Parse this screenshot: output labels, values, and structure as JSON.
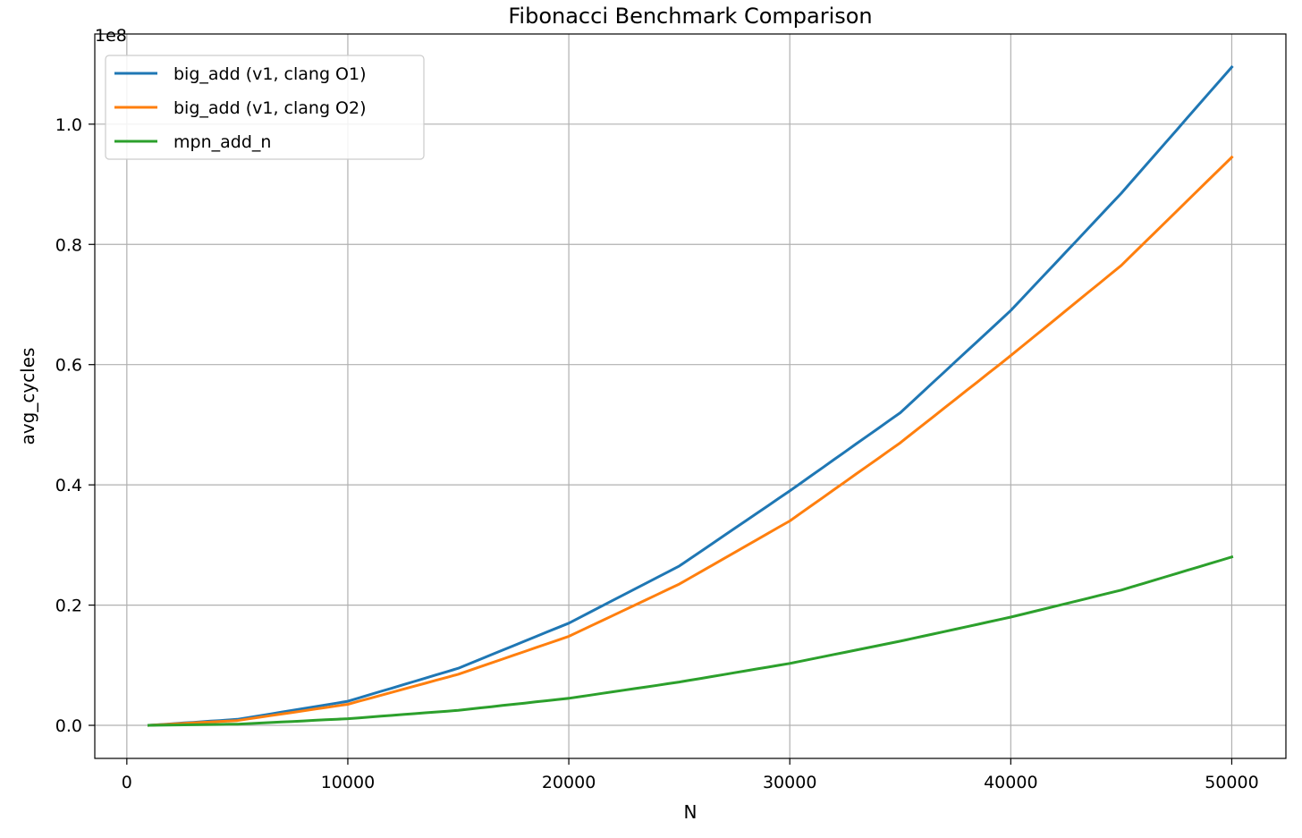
{
  "chart_data": {
    "type": "line",
    "title": "Fibonacci Benchmark Comparison",
    "xlabel": "N",
    "ylabel": "avg_cycles",
    "y_offset_label": "1e8",
    "xlim": [
      -1450,
      52450
    ],
    "ylim": [
      -5500000,
      115000000
    ],
    "x_ticks": [
      0,
      10000,
      20000,
      30000,
      40000,
      50000
    ],
    "x_tick_labels": [
      "0",
      "10000",
      "20000",
      "30000",
      "40000",
      "50000"
    ],
    "y_ticks": [
      0,
      20000000,
      40000000,
      60000000,
      80000000,
      100000000
    ],
    "y_tick_labels": [
      "0.0",
      "0.2",
      "0.4",
      "0.6",
      "0.8",
      "1.0"
    ],
    "grid": true,
    "legend_position": "upper-left",
    "x": [
      1000,
      5000,
      10000,
      15000,
      20000,
      25000,
      30000,
      35000,
      40000,
      45000,
      50000
    ],
    "series": [
      {
        "name": "big_add (v1, clang O1)",
        "color": "#1f77b4",
        "values": [
          0,
          1000000,
          4000000,
          9500000,
          17000000,
          26500000,
          39000000,
          52000000,
          69000000,
          88500000,
          109500000
        ]
      },
      {
        "name": "big_add (v1, clang O2)",
        "color": "#ff7f0e",
        "values": [
          0,
          800000,
          3500000,
          8500000,
          14800000,
          23500000,
          34000000,
          47000000,
          61500000,
          76500000,
          94500000
        ]
      },
      {
        "name": "mpn_add_n",
        "color": "#2ca02c",
        "values": [
          0,
          200000,
          1100000,
          2500000,
          4500000,
          7200000,
          10300000,
          14000000,
          18000000,
          22500000,
          28000000
        ]
      }
    ]
  }
}
